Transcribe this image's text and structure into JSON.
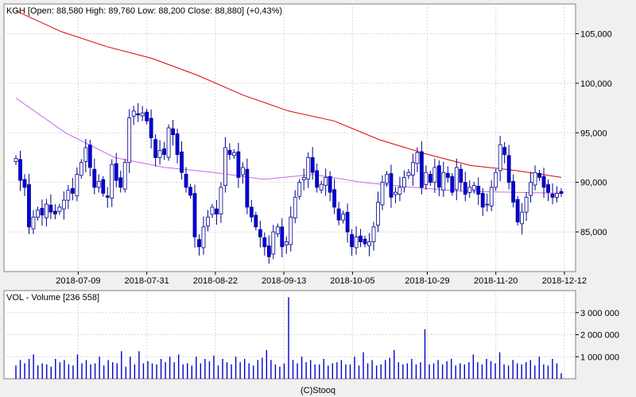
{
  "price_panel": {
    "title": "KGH [Open: 88,580  High: 89,760  Low: 88,200  Close: 88,880] (+0,43%)",
    "y_ticks": [
      "105,000",
      "100,000",
      "95,000",
      "90,000",
      "85,000"
    ],
    "x_ticks": [
      "2018-07-09",
      "2018-07-31",
      "2018-08-22",
      "2018-09-13",
      "2018-10-05",
      "2018-10-29",
      "2018-11-20",
      "2018-12-12"
    ]
  },
  "volume_panel": {
    "title": "VOL - Volume [236 558]",
    "y_ticks": [
      "3 000 000",
      "2 000 000",
      "1 000 000"
    ]
  },
  "footer": {
    "credit": "(C)Stooq"
  },
  "colors": {
    "background": "#f0f0f0",
    "plot_background": "#ffffff",
    "grid": "#d8d8d8",
    "candle_down": "#0000dd",
    "candle_up_fill": "#ffffff",
    "candle_border": "#000088",
    "ma_long": "#dd0000",
    "ma_short": "#cc66ee",
    "volume_bar": "#0000cc"
  },
  "chart_data": [
    {
      "type": "candlestick",
      "symbol": "KGH",
      "ylim": [
        81000,
        108000
      ],
      "start_date": "2018-06-19",
      "dates_shown": [
        "2018-07-09",
        "2018-07-31",
        "2018-08-22",
        "2018-09-13",
        "2018-10-05",
        "2018-10-29",
        "2018-11-20",
        "2018-12-12"
      ],
      "closes": [
        92400,
        90200,
        89500,
        85500,
        86500,
        87200,
        86700,
        87800,
        87000,
        86800,
        87500,
        88200,
        89200,
        88900,
        90800,
        92000,
        93500,
        91500,
        89500,
        90100,
        88900,
        88500,
        91800,
        90200,
        89500,
        92000,
        96500,
        97200,
        96800,
        97000,
        96200,
        94500,
        92500,
        93200,
        92800,
        95500,
        94800,
        92800,
        91000,
        89500,
        88700,
        84500,
        83500,
        85500,
        86500,
        87500,
        86800,
        89500,
        93500,
        92800,
        93000,
        90500,
        91500,
        87500,
        86500,
        85500,
        84500,
        83500,
        82500,
        85000,
        85500,
        83500,
        84000,
        86500,
        88500,
        90000,
        90500,
        92500,
        91000,
        89500,
        89800,
        90500,
        89000,
        87500,
        86200,
        86800,
        85000,
        83500,
        84500,
        84000,
        83800,
        84000,
        85500,
        88000,
        90000,
        90800,
        88500,
        89000,
        89500,
        90500,
        91000,
        92000,
        93000,
        89500,
        91000,
        90000,
        91500,
        89500,
        91000,
        90500,
        89000,
        91500,
        90000,
        88800,
        89500,
        89700,
        88800,
        87500,
        87800,
        89500,
        91000,
        93800,
        92800,
        90000,
        88000,
        86000,
        87000,
        88500,
        90000,
        91000,
        90500,
        89500,
        89000,
        88500,
        88900,
        88880
      ]
    },
    {
      "type": "line",
      "name": "ma_long",
      "values": [
        107300,
        105200,
        103700,
        102500,
        100800,
        98800,
        97200,
        96200,
        94300,
        92900,
        91700,
        91200,
        90500
      ]
    },
    {
      "type": "line",
      "name": "ma_short",
      "values": [
        98500,
        95000,
        92500,
        91500,
        91000,
        90300,
        90800,
        90000,
        89500,
        89100,
        89000,
        88900
      ]
    },
    {
      "type": "bar",
      "name": "volume",
      "ylim": [
        0,
        4000000
      ],
      "values": [
        600000,
        850000,
        700000,
        900000,
        1100000,
        600000,
        700000,
        650000,
        550000,
        900000,
        750000,
        850000,
        650000,
        600000,
        1100000,
        700000,
        850000,
        650000,
        700000,
        1000000,
        600000,
        850000,
        750000,
        700000,
        1250000,
        550000,
        1000000,
        650000,
        1250000,
        700000,
        800000,
        700000,
        650000,
        900000,
        750000,
        1000000,
        750000,
        1100000,
        650000,
        700000,
        600000,
        1000000,
        700000,
        900000,
        800000,
        1050000,
        600000,
        900000,
        750000,
        650000,
        1000000,
        750000,
        900000,
        700000,
        600000,
        850000,
        950000,
        1300000,
        850000,
        650000,
        550000,
        700000,
        3700000,
        850000,
        700000,
        1000000,
        750000,
        850000,
        650000,
        650000,
        900000,
        600000,
        700000,
        750000,
        850000,
        650000,
        650000,
        1000000,
        600000,
        1200000,
        700000,
        850000,
        600000,
        650000,
        850000,
        950000,
        1300000,
        750000,
        650000,
        700000,
        900000,
        650000,
        750000,
        2250000,
        650000,
        700000,
        850000,
        650000,
        800000,
        900000,
        600000,
        700000,
        650000,
        750000,
        1100000,
        750000,
        650000,
        900000,
        800000,
        700000,
        1200000,
        650000,
        600000,
        850000,
        700000,
        650000,
        750000,
        850000,
        600000,
        1000000,
        650000,
        600000,
        900000,
        700000,
        250000
      ]
    }
  ]
}
